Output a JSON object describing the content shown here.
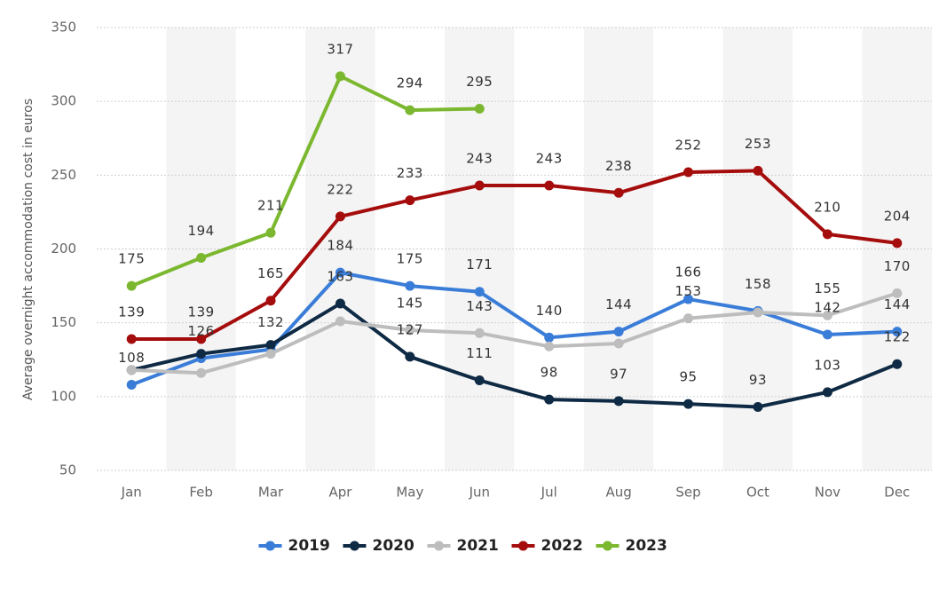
{
  "chart_data": {
    "type": "line",
    "y_label": "Average overnight accommodation cost in euros",
    "categories": [
      "Jan",
      "Feb",
      "Mar",
      "Apr",
      "May",
      "Jun",
      "Jul",
      "Aug",
      "Sep",
      "Oct",
      "Nov",
      "Dec"
    ],
    "ylim": [
      50,
      350
    ],
    "yticks": [
      50,
      100,
      150,
      200,
      250,
      300,
      350
    ],
    "grid": true,
    "legend": "bottom",
    "series": [
      {
        "name": "2019",
        "color": "#3a7dd8",
        "values": [
          108,
          126,
          132,
          184,
          175,
          171,
          140,
          144,
          166,
          158,
          142,
          144
        ],
        "value_labels": [
          "108",
          "126",
          "132",
          "184",
          "175",
          "171",
          "140",
          "144",
          "166",
          "158",
          "142",
          "144"
        ]
      },
      {
        "name": "2020",
        "color": "#0f2a44",
        "values": [
          118,
          129,
          135,
          163,
          127,
          111,
          98,
          97,
          95,
          93,
          103,
          122
        ],
        "value_labels": [
          null,
          null,
          null,
          "163",
          "127",
          "111",
          "98",
          "97",
          "95",
          "93",
          "103",
          "122"
        ]
      },
      {
        "name": "2021",
        "color": "#bdbdbd",
        "values": [
          118,
          116,
          129,
          151,
          145,
          143,
          134,
          136,
          153,
          157,
          155,
          170
        ],
        "value_labels": [
          null,
          null,
          null,
          null,
          "145",
          "143",
          null,
          null,
          "153",
          null,
          "155",
          "170"
        ]
      },
      {
        "name": "2022",
        "color": "#a50d0d",
        "values": [
          139,
          139,
          165,
          222,
          233,
          243,
          243,
          238,
          252,
          253,
          210,
          204
        ],
        "value_labels": [
          "139",
          "139",
          "165",
          "222",
          "233",
          "243",
          "243",
          "238",
          "252",
          "253",
          "210",
          "204"
        ]
      },
      {
        "name": "2023",
        "color": "#7cb82f",
        "values": [
          175,
          194,
          211,
          317,
          294,
          295,
          null,
          null,
          null,
          null,
          null,
          null
        ],
        "value_labels": [
          "175",
          "194",
          "211",
          "317",
          "294",
          "295",
          null,
          null,
          null,
          null,
          null,
          null
        ]
      }
    ]
  }
}
